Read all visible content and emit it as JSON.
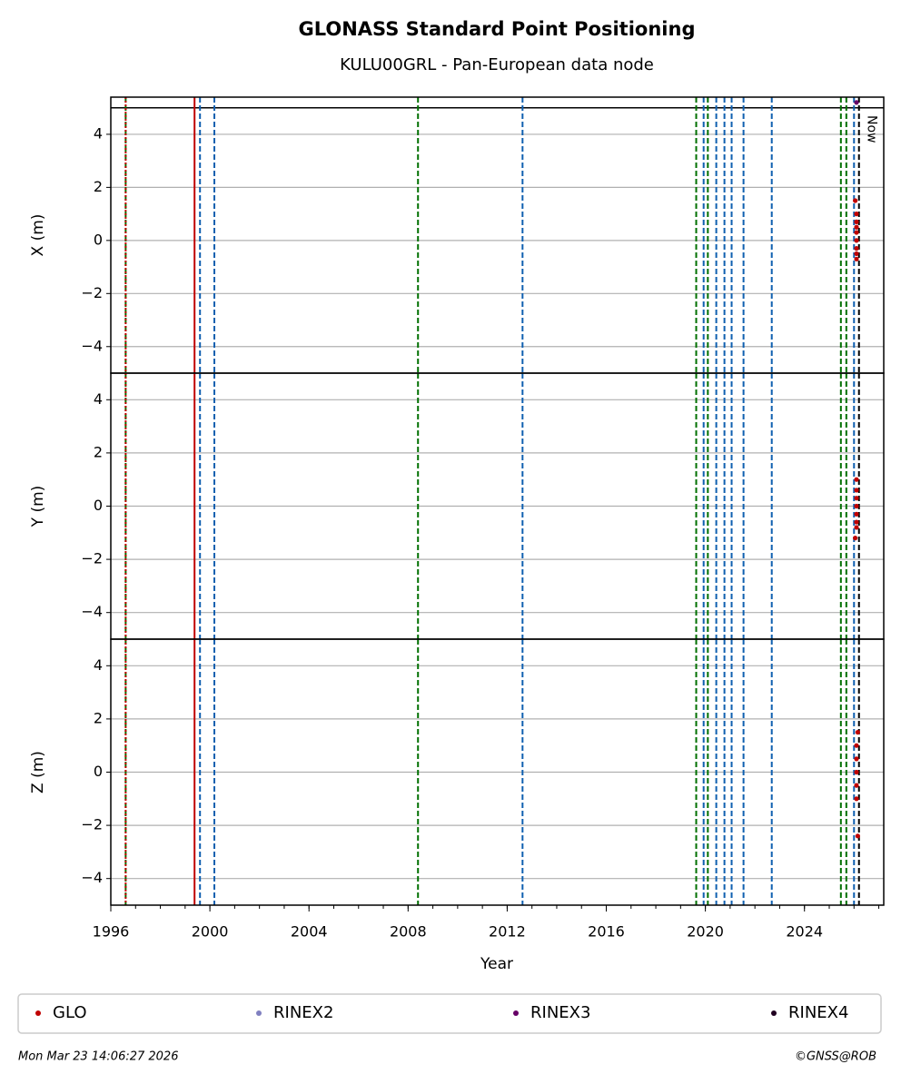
{
  "chart_data": {
    "type": "scatter",
    "title": "GLONASS Standard Point Positioning",
    "subtitle": "KULU00GRL - Pan-European data node",
    "xlabel": "Year",
    "xlim": [
      1996,
      2027.2
    ],
    "xticks": [
      1996,
      2000,
      2004,
      2008,
      2012,
      2016,
      2020,
      2024
    ],
    "xminorstep": 1,
    "grid": true,
    "legend": "bottom",
    "series": [
      {
        "name": "GLO",
        "color": "#c00000"
      },
      {
        "name": "RINEX2",
        "color": "#8080c0"
      },
      {
        "name": "RINEX3",
        "color": "#660066"
      },
      {
        "name": "RINEX4",
        "color": "#200020"
      }
    ],
    "events": [
      {
        "x": 1996.6,
        "color": "#007000",
        "style": "dashed"
      },
      {
        "x": 1996.6,
        "color": "#c00000",
        "style": "dotted"
      },
      {
        "x": 1999.38,
        "color": "#c00000",
        "style": "solid"
      },
      {
        "x": 1999.6,
        "color": "#1060b0",
        "style": "dashed"
      },
      {
        "x": 2000.18,
        "color": "#1060b0",
        "style": "dashed"
      },
      {
        "x": 2008.4,
        "color": "#007000",
        "style": "dashed"
      },
      {
        "x": 2012.62,
        "color": "#1060b0",
        "style": "dashed"
      },
      {
        "x": 2019.63,
        "color": "#007000",
        "style": "dashed"
      },
      {
        "x": 2019.93,
        "color": "#1060b0",
        "style": "dashed"
      },
      {
        "x": 2020.1,
        "color": "#007000",
        "style": "dashed"
      },
      {
        "x": 2020.44,
        "color": "#1060b0",
        "style": "dashed"
      },
      {
        "x": 2020.77,
        "color": "#1060b0",
        "style": "dashed"
      },
      {
        "x": 2021.06,
        "color": "#1060b0",
        "style": "dashed"
      },
      {
        "x": 2021.54,
        "color": "#1060b0",
        "style": "dashed"
      },
      {
        "x": 2022.68,
        "color": "#1060b0",
        "style": "dashed"
      },
      {
        "x": 2025.47,
        "color": "#007000",
        "style": "dashed"
      },
      {
        "x": 2025.69,
        "color": "#007000",
        "style": "dashed"
      },
      {
        "x": 2026.0,
        "color": "#1060b0",
        "style": "dashed"
      },
      {
        "x": 2026.2,
        "color": "#000000",
        "style": "dashed"
      }
    ],
    "now_label": "Now",
    "now_x": 2026.2,
    "panels": [
      {
        "ylabel": "X (m)",
        "ylim": [
          -5,
          5.4
        ],
        "hline": 5,
        "yticks": [
          {
            "value": -4,
            "label": "−4"
          },
          {
            "value": -2,
            "label": "−2"
          },
          0,
          2,
          4
        ],
        "series": [
          {
            "x": [
              2026.05,
              2026.1,
              2026.1,
              2026.1,
              2026.1,
              2026.1,
              2026.1,
              2026.1,
              2026.1
            ],
            "values": [
              1.5,
              1.0,
              0.7,
              0.5,
              0.3,
              0,
              -0.3,
              -0.5,
              -0.7
            ]
          },
          {
            "x": [],
            "values": []
          },
          {
            "x": [
              2026.1
            ],
            "values": [
              5.2
            ]
          },
          {
            "x": [],
            "values": []
          }
        ]
      },
      {
        "ylabel": "Y (m)",
        "ylim": [
          -5,
          5
        ],
        "yticks": [
          {
            "value": -4,
            "label": "−4"
          },
          {
            "value": -2,
            "label": "−2"
          },
          0,
          2,
          4
        ],
        "series": [
          {
            "x": [
              2026.1,
              2026.1,
              2026.1,
              2026.1,
              2026.1,
              2026.1,
              2026.1,
              2026.05
            ],
            "values": [
              1.0,
              0.6,
              0.3,
              0,
              -0.3,
              -0.6,
              -0.8,
              -1.2
            ]
          },
          {
            "x": [],
            "values": []
          },
          {
            "x": [],
            "values": []
          },
          {
            "x": [],
            "values": []
          }
        ]
      },
      {
        "ylabel": "Z (m)",
        "ylim": [
          -5,
          5
        ],
        "yticks": [
          {
            "value": -4,
            "label": "−4"
          },
          {
            "value": -2,
            "label": "−2"
          },
          0,
          2,
          4
        ],
        "series": [
          {
            "x": [
              2026.15,
              2026.1,
              2026.1,
              2026.1,
              2026.1,
              2026.1,
              2026.15
            ],
            "values": [
              1.5,
              1.0,
              0.5,
              0,
              -0.5,
              -1.0,
              -2.4
            ]
          },
          {
            "x": [],
            "values": []
          },
          {
            "x": [],
            "values": []
          },
          {
            "x": [],
            "values": []
          }
        ]
      }
    ],
    "footer_left": "Mon Mar 23 14:06:27 2026",
    "footer_right": "©GNSS@ROB"
  }
}
